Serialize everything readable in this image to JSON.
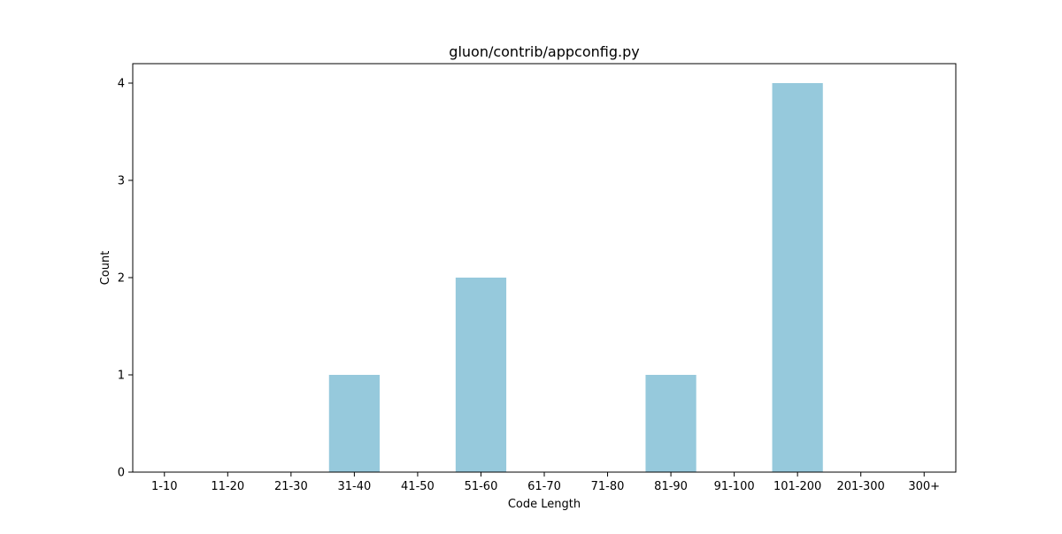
{
  "chart_data": {
    "type": "bar",
    "title": "gluon/contrib/appconfig.py",
    "xlabel": "Code Length",
    "ylabel": "Count",
    "categories": [
      "1-10",
      "11-20",
      "21-30",
      "31-40",
      "41-50",
      "51-60",
      "61-70",
      "71-80",
      "81-90",
      "91-100",
      "101-200",
      "201-300",
      "300+"
    ],
    "values": [
      0,
      0,
      0,
      1,
      0,
      2,
      0,
      0,
      1,
      0,
      4,
      0,
      0
    ],
    "ylim": [
      0,
      4.2
    ],
    "yticks": [
      0,
      1,
      2,
      3,
      4
    ],
    "bar_color": "#96c9dc",
    "grid": false,
    "legend": "none"
  }
}
